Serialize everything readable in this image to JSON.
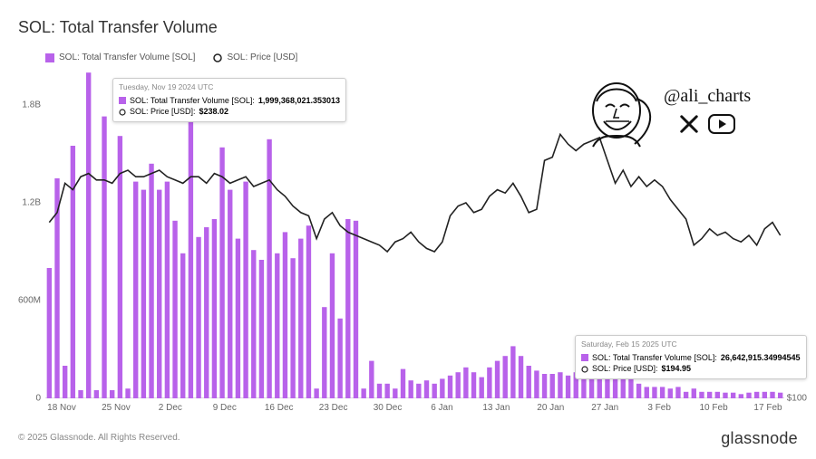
{
  "title": "SOL: Total Transfer Volume",
  "legend": {
    "bar_label": "SOL: Total Transfer Volume [SOL]",
    "line_label": "SOL: Price [USD]"
  },
  "colors": {
    "bar": "#b862ea",
    "line": "#222222",
    "bg": "#ffffff",
    "grid": "#eeeeee",
    "text": "#333333",
    "muted": "#888888",
    "tooltip_border": "#cccccc"
  },
  "chart": {
    "type": "bar+line",
    "y_left": {
      "min": 0,
      "max": 2000000000,
      "ticks": [
        0,
        600000000,
        1200000000,
        1800000000
      ],
      "tick_labels": [
        "0",
        "600M",
        "1.2B",
        "1.8B"
      ]
    },
    "y_right": {
      "min": 100,
      "max": 300,
      "ticks": [
        100
      ],
      "tick_labels": [
        "$100"
      ]
    },
    "x_labels": [
      "18 Nov",
      "25 Nov",
      "2 Dec",
      "9 Dec",
      "16 Dec",
      "23 Dec",
      "30 Dec",
      "6 Jan",
      "13 Jan",
      "20 Jan",
      "27 Jan",
      "3 Feb",
      "10 Feb",
      "17 Feb"
    ],
    "bars": [
      800,
      1350,
      200,
      1550,
      50,
      1999,
      50,
      1730,
      50,
      1610,
      60,
      1330,
      1280,
      1440,
      1280,
      1330,
      1090,
      890,
      1720,
      990,
      1050,
      1100,
      1540,
      1280,
      980,
      1330,
      910,
      850,
      1590,
      890,
      1020,
      860,
      980,
      1060,
      60,
      560,
      890,
      490,
      1100,
      1090,
      60,
      230,
      90,
      90,
      60,
      180,
      110,
      90,
      110,
      90,
      120,
      140,
      160,
      190,
      160,
      130,
      190,
      230,
      260,
      320,
      260,
      200,
      170,
      150,
      150,
      160,
      140,
      160,
      150,
      150,
      140,
      160,
      380,
      170,
      120,
      90,
      70,
      70,
      70,
      60,
      70,
      40,
      60,
      40,
      40,
      40,
      35,
      35,
      26,
      35,
      40,
      40,
      40,
      35
    ],
    "line": [
      208,
      214,
      232,
      228,
      236,
      238,
      234,
      234,
      232,
      238,
      240,
      236,
      236,
      238,
      240,
      236,
      234,
      232,
      236,
      236,
      232,
      238,
      236,
      232,
      234,
      236,
      230,
      232,
      234,
      228,
      224,
      218,
      214,
      212,
      198,
      210,
      214,
      206,
      202,
      200,
      198,
      196,
      194,
      190,
      196,
      198,
      202,
      196,
      192,
      190,
      196,
      212,
      218,
      220,
      214,
      216,
      224,
      228,
      226,
      232,
      224,
      214,
      216,
      246,
      248,
      262,
      256,
      252,
      256,
      258,
      260,
      246,
      232,
      240,
      230,
      236,
      230,
      234,
      230,
      222,
      216,
      210,
      194,
      198,
      204,
      200,
      202,
      198,
      196,
      200,
      194,
      204,
      208,
      200
    ]
  },
  "tooltip1": {
    "date": "Tuesday, Nov 19 2024 UTC",
    "vol_label": "SOL: Total Transfer Volume [SOL]:",
    "vol_value": "1,999,368,021.353013",
    "price_label": "SOL: Price [USD]:",
    "price_value": "$238.02"
  },
  "tooltip2": {
    "date": "Saturday, Feb 15 2025 UTC",
    "vol_label": "SOL: Total Transfer Volume [SOL]:",
    "vol_value": "26,642,915.34994545",
    "price_label": "SOL: Price [USD]:",
    "price_value": "$194.95"
  },
  "handle": "@ali_charts",
  "footer": {
    "copyright": "© 2025 Glassnode. All Rights Reserved.",
    "brand": "glassnode"
  }
}
